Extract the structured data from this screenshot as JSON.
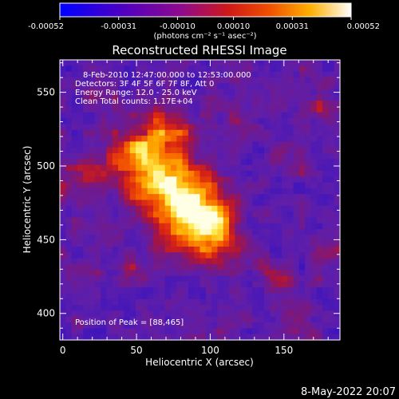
{
  "chart_data": {
    "type": "heatmap",
    "title": "Reconstructed RHESSI Image",
    "xlabel": "Heliocentric X (arcsec)",
    "ylabel": "Heliocentric Y (arcsec)",
    "xlim": [
      -2,
      188
    ],
    "ylim": [
      382,
      572
    ],
    "x_ticks": [
      0,
      50,
      100,
      150
    ],
    "y_ticks": [
      400,
      450,
      500,
      550
    ],
    "colorbar": {
      "ticks": [
        "-0.00052",
        "-0.00031",
        "-0.00010",
        "0.00010",
        "0.00031",
        "0.00052"
      ],
      "range": [
        -0.00052,
        0.00052
      ],
      "unit_label": "(photons cm⁻² s⁻¹ asec⁻²)",
      "colors": [
        "#0000ff",
        "#4a00c8",
        "#8a0fa0",
        "#c02040",
        "#e03000",
        "#ff7000",
        "#ffc000",
        "#ffffa0",
        "#ffffff"
      ]
    },
    "annotations": [
      "8-Feb-2010 12:47:00.000 to 12:53:00.000",
      "Detectors: 3F 4F 5F 6F 7F 8F, Att 0",
      "Energy Range: 12.0 - 25.0 keV",
      "Clean     Total counts: 1.17E+04"
    ],
    "peak_label": "Position of Peak = [88,465]",
    "peak": [
      88,
      465
    ],
    "grid": false
  },
  "footer": {
    "date": "8-May-2022 20:07"
  }
}
